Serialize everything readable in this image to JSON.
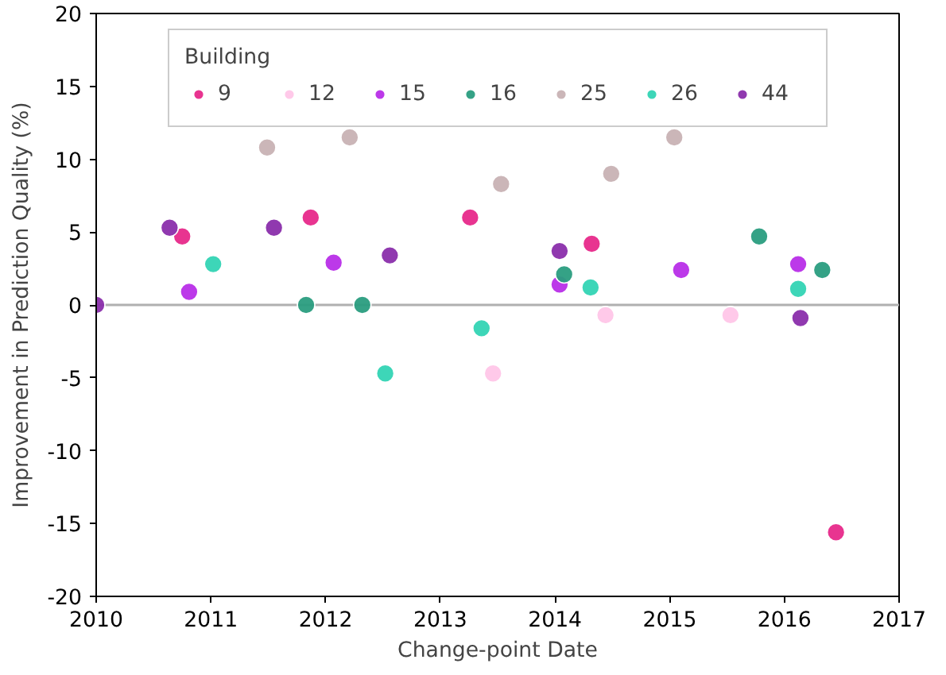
{
  "chart_data": {
    "type": "scatter",
    "xlabel": "Change-point Date",
    "ylabel": "Improvement in Prediction Quality (%)",
    "legend_title": "Building",
    "legend": "top",
    "grid": false,
    "marker": "circle",
    "xlim": [
      2010,
      2017
    ],
    "xticks": [
      2010,
      2011,
      2012,
      2013,
      2014,
      2015,
      2016,
      2017
    ],
    "ylim": [
      -20,
      20
    ],
    "yticks": [
      -20,
      -15,
      -10,
      -5,
      0,
      5,
      10,
      15,
      20
    ],
    "ref_lines": [
      {
        "axis": "y",
        "value": 0,
        "color": "#b0b0b0"
      }
    ],
    "series": [
      {
        "name": "9",
        "color": "#e7298a",
        "x": [
          2010.75,
          2011.87,
          2013.26,
          2014.32,
          2016.45
        ],
        "values": [
          4.7,
          6.0,
          6.0,
          4.2,
          -15.6
        ]
      },
      {
        "name": "12",
        "color": "#ffc6e8",
        "x": [
          2013.46,
          2014.44,
          2015.53
        ],
        "values": [
          -4.7,
          -0.7,
          -0.7
        ]
      },
      {
        "name": "15",
        "color": "#b82ee8",
        "x": [
          2010.81,
          2012.07,
          2014.04,
          2015.1,
          2016.12
        ],
        "values": [
          0.9,
          2.9,
          1.4,
          2.4,
          2.8
        ]
      },
      {
        "name": "16",
        "color": "#2a9d7f",
        "x": [
          2011.83,
          2012.32,
          2014.08,
          2015.78,
          2016.33
        ],
        "values": [
          0.0,
          0.0,
          2.1,
          4.7,
          2.4
        ]
      },
      {
        "name": "25",
        "color": "#c8b2b4",
        "x": [
          2011.49,
          2012.21,
          2013.53,
          2014.49,
          2015.04
        ],
        "values": [
          10.8,
          11.5,
          8.3,
          9.0,
          11.5
        ]
      },
      {
        "name": "26",
        "color": "#33d4b4",
        "x": [
          2011.02,
          2012.52,
          2013.36,
          2014.31,
          2016.12
        ],
        "values": [
          2.8,
          -4.7,
          -1.6,
          1.2,
          1.1
        ]
      },
      {
        "name": "44",
        "color": "#8a2eab",
        "x": [
          2010.0,
          2010.64,
          2011.55,
          2012.56,
          2014.04,
          2016.14
        ],
        "values": [
          0.0,
          5.3,
          5.3,
          3.4,
          3.7,
          -0.9
        ]
      }
    ]
  }
}
